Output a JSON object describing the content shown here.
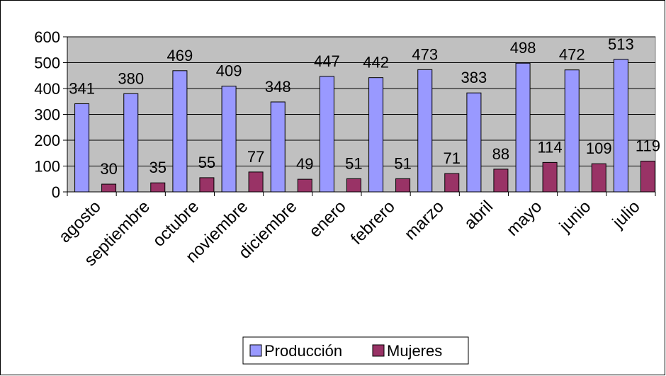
{
  "chart_data": {
    "type": "bar",
    "categories": [
      "agosto",
      "septiembre",
      "octubre",
      "noviembre",
      "diciembre",
      "enero",
      "febrero",
      "marzo",
      "abril",
      "mayo",
      "junio",
      "julio"
    ],
    "series": [
      {
        "name": "Producción",
        "color": "#9999FF",
        "values": [
          341,
          380,
          469,
          409,
          348,
          447,
          442,
          473,
          383,
          498,
          472,
          513
        ]
      },
      {
        "name": "Mujeres",
        "color": "#993366",
        "values": [
          30,
          35,
          55,
          77,
          49,
          51,
          51,
          71,
          88,
          114,
          109,
          119
        ]
      }
    ],
    "ylim": [
      0,
      600
    ],
    "yticks": [
      0,
      100,
      200,
      300,
      400,
      500,
      600
    ],
    "grid": true,
    "plot_background": "#C0C0C0",
    "legend": "bottom"
  }
}
